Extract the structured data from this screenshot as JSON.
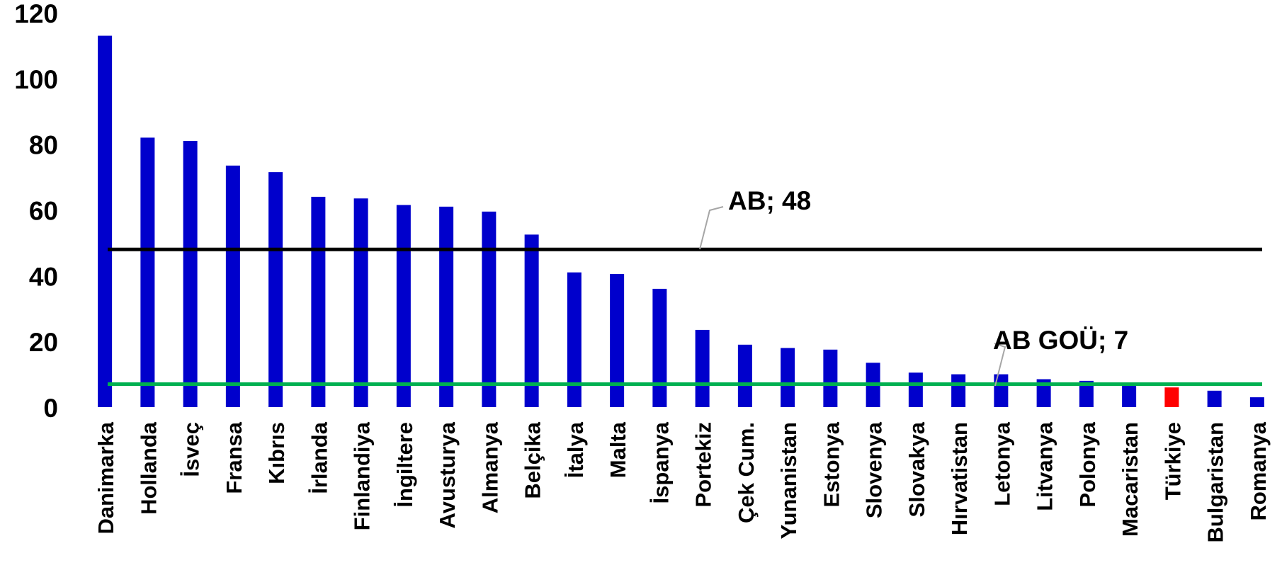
{
  "chart_data": {
    "type": "bar",
    "title": "",
    "xlabel": "",
    "ylabel": "",
    "ylim": [
      0,
      120
    ],
    "yticks": [
      0,
      20,
      40,
      60,
      80,
      100,
      120
    ],
    "grid": false,
    "legend": "none",
    "categories": [
      "Danimarka",
      "Hollanda",
      "İsveç",
      "Fransa",
      "Kıbrıs",
      "İrlanda",
      "Finlandiya",
      "İngiltere",
      "Avusturya",
      "Almanya",
      "Belçika",
      "İtalya",
      "Malta",
      "İspanya",
      "Portekiz",
      "Çek Cum.",
      "Yunanistan",
      "Estonya",
      "Slovenya",
      "Slovakya",
      "Hırvatistan",
      "Letonya",
      "Litvanya",
      "Polonya",
      "Macaristan",
      "Türkiye",
      "Bulgaristan",
      "Romanya"
    ],
    "values": [
      113,
      82,
      81,
      73.5,
      71.5,
      64,
      63.5,
      61.5,
      61,
      59.5,
      52.5,
      41,
      40.5,
      36,
      23.5,
      19,
      18,
      17.5,
      13.5,
      10.5,
      10,
      10,
      8.5,
      8,
      6.5,
      6,
      5,
      3
    ],
    "bar_colors": [
      "#0000cc",
      "#0000cc",
      "#0000cc",
      "#0000cc",
      "#0000cc",
      "#0000cc",
      "#0000cc",
      "#0000cc",
      "#0000cc",
      "#0000cc",
      "#0000cc",
      "#0000cc",
      "#0000cc",
      "#0000cc",
      "#0000cc",
      "#0000cc",
      "#0000cc",
      "#0000cc",
      "#0000cc",
      "#0000cc",
      "#0000cc",
      "#0000cc",
      "#0000cc",
      "#0000cc",
      "#0000cc",
      "#ff0000",
      "#0000cc",
      "#0000cc"
    ],
    "reference_lines": [
      {
        "name": "AB",
        "value": 48,
        "label": "AB;  48",
        "color": "#000000"
      },
      {
        "name": "AB GOÜ",
        "value": 7,
        "label": "AB GOÜ;  7",
        "color": "#00b050"
      }
    ]
  }
}
